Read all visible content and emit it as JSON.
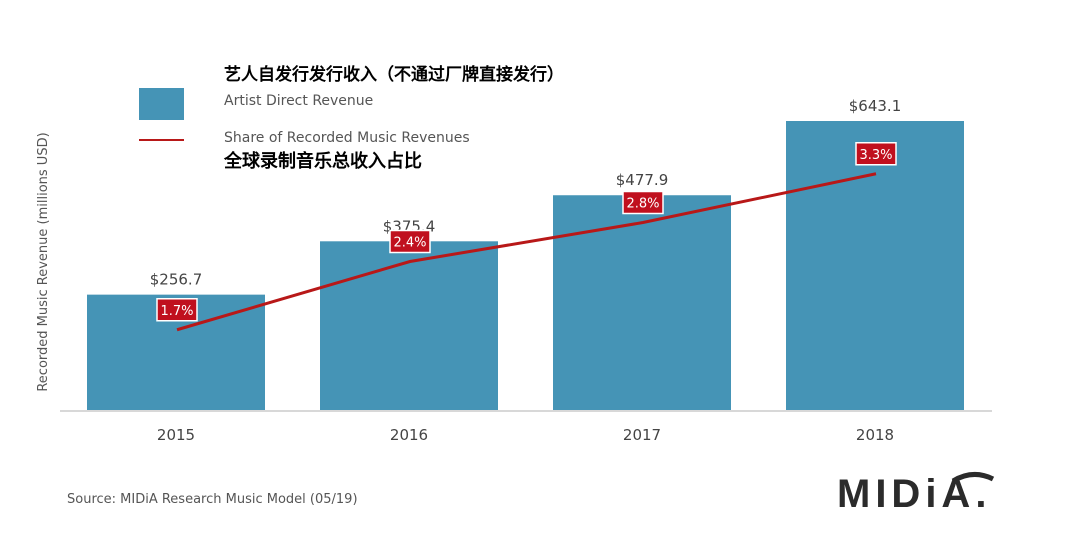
{
  "colors": {
    "bar": "#4594b6",
    "line": "#b81818",
    "label_bg": "#c0101e",
    "axis_line": "#cccccc",
    "text": "#444444"
  },
  "legend": {
    "cn_title": "艺人自发行发行收入（不通过厂牌直接发行）",
    "bar_label": "Artist Direct Revenue",
    "line_label": "Share of Recorded Music Revenues",
    "cn_line_label": "全球录制音乐总收入占比"
  },
  "source": "Source: MIDiA Research Music Model (05/19)",
  "logo_text": "MIDiA.",
  "chart_data": {
    "type": "bar",
    "categories": [
      "2015",
      "2016",
      "2017",
      "2018"
    ],
    "ylabel": "Recorded Music Revenue (millions USD)",
    "ylim": [
      0,
      700
    ],
    "grid": false,
    "legend_position": "top-left",
    "series": [
      {
        "name": "Artist Direct Revenue",
        "type": "bar",
        "values": [
          256.7,
          375.4,
          477.9,
          643.1
        ],
        "labels": [
          "$256.7",
          "$375.4",
          "$477.9",
          "$643.1"
        ]
      },
      {
        "name": "Share of Recorded Music Revenues",
        "type": "line",
        "values": [
          1.7,
          2.4,
          2.8,
          3.3
        ],
        "unit": "%",
        "labels": [
          "1.7%",
          "2.4%",
          "2.8%",
          "3.3%"
        ]
      }
    ]
  }
}
